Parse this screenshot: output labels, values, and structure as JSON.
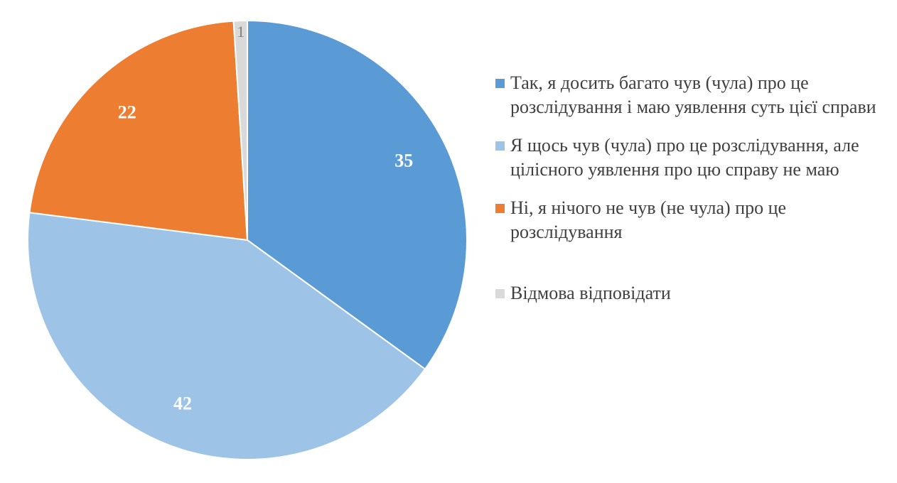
{
  "chart_data": {
    "type": "pie",
    "title": "",
    "slices": [
      {
        "label": "Так, я досить багато чув (чула) про це розслідування і маю уявлення суть цієї справи",
        "value": 35,
        "color": "#5b9bd5"
      },
      {
        "label": "Я щось чув (чула) про це розслідування, але цілісного уявлення про цю справу не маю",
        "value": 42,
        "color": "#9dc3e6"
      },
      {
        "label": "Ні, я нічого не чув (не чула) про це розслідування",
        "value": 22,
        "color": "#ed7d31"
      },
      {
        "label": "Відмова відповідати",
        "value": 1,
        "color": "#d9d9d9"
      }
    ],
    "legend_position": "right",
    "start_angle_deg": 0,
    "direction": "clockwise"
  }
}
